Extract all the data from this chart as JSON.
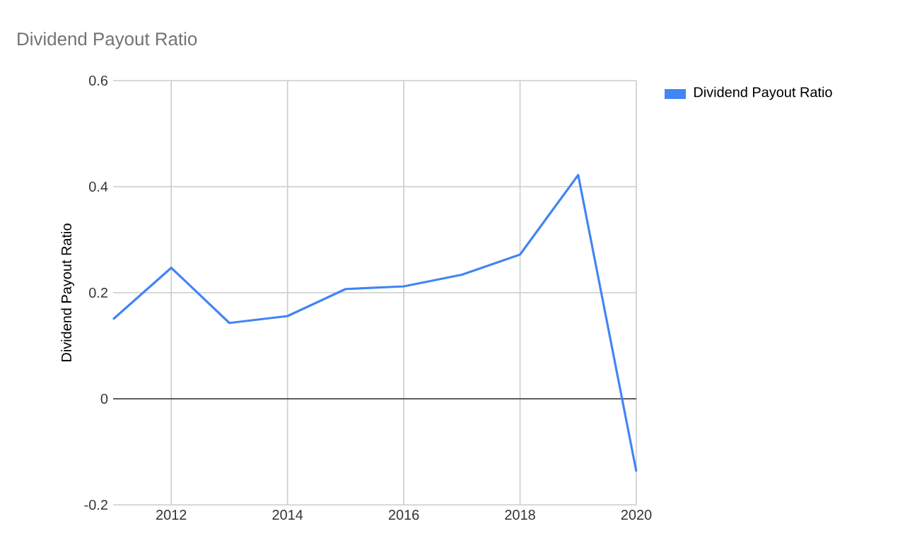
{
  "chart_data": {
    "type": "line",
    "title": "Dividend Payout Ratio",
    "ylabel": "Dividend Payout Ratio",
    "x": [
      2011,
      2012,
      2013,
      2014,
      2015,
      2016,
      2017,
      2018,
      2019,
      2020
    ],
    "series": [
      {
        "name": "Dividend Payout Ratio",
        "color": "#4285f4",
        "values": [
          0.15,
          0.247,
          0.143,
          0.156,
          0.207,
          0.212,
          0.234,
          0.272,
          0.422,
          -0.137
        ]
      }
    ],
    "xlim": [
      2011,
      2020
    ],
    "xticks": [
      2012,
      2014,
      2016,
      2018,
      2020
    ],
    "ylim": [
      -0.2,
      0.6
    ],
    "yticks": [
      -0.2,
      0,
      0.2,
      0.4,
      0.6
    ],
    "ref_lines": [
      {
        "axis": "y",
        "value": 0,
        "color": "#333333"
      }
    ],
    "grid": true,
    "legend": "right",
    "marker": "none",
    "line_style": "solid"
  }
}
